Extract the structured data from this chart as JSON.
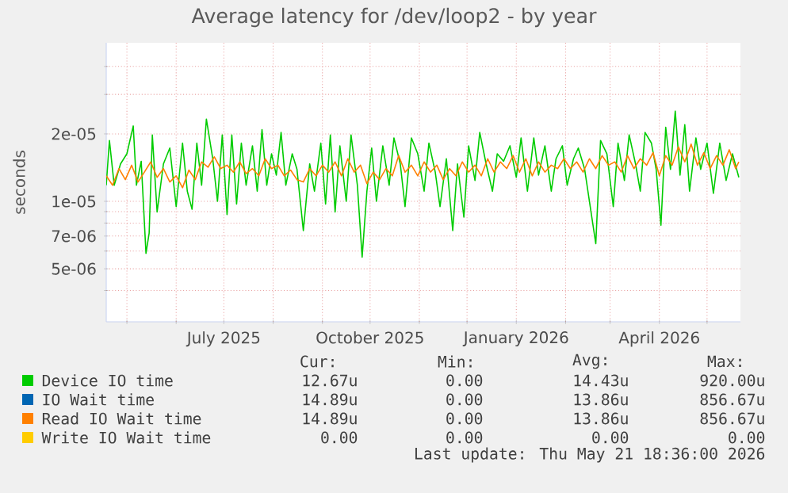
{
  "chart_data": {
    "type": "line",
    "title": "Average latency for /dev/loop2 - by year",
    "ylabel": "seconds",
    "log": "y",
    "grid": true,
    "legend": "bottom",
    "line_style": "solid",
    "xlim": [
      "2025-04-18",
      "2026-05-22"
    ],
    "xticks": [
      {
        "value": "2025-05-01",
        "label": null
      },
      {
        "value": "2025-06-01",
        "label": null
      },
      {
        "value": "2025-07-01",
        "label": "July 2025"
      },
      {
        "value": "2025-08-01",
        "label": null
      },
      {
        "value": "2025-09-01",
        "label": null
      },
      {
        "value": "2025-10-01",
        "label": "October 2025"
      },
      {
        "value": "2025-11-01",
        "label": null
      },
      {
        "value": "2025-12-01",
        "label": null
      },
      {
        "value": "2026-01-01",
        "label": "January 2026"
      },
      {
        "value": "2026-02-01",
        "label": null
      },
      {
        "value": "2026-03-01",
        "label": null
      },
      {
        "value": "2026-04-01",
        "label": "April 2026"
      },
      {
        "value": "2026-05-01",
        "label": null
      }
    ],
    "ylim": [
      2.9e-06,
      5.1e-05
    ],
    "yticks": [
      {
        "value": 5e-06,
        "label": "5e-06"
      },
      {
        "value": 7e-06,
        "label": "7e-06"
      },
      {
        "value": 1e-05,
        "label": "1e-05"
      },
      {
        "value": 2e-05,
        "label": "2e-05"
      },
      {
        "value": 4e-06,
        "label": null
      },
      {
        "value": 6e-06,
        "label": null
      },
      {
        "value": 8e-06,
        "label": null
      },
      {
        "value": 9e-06,
        "label": null
      },
      {
        "value": 3e-05,
        "label": null
      },
      {
        "value": 4e-05,
        "label": null
      }
    ],
    "series": [
      {
        "name": "Device IO time",
        "color": "#00cc00",
        "x": [
          "2025-04-18",
          "2025-04-20",
          "2025-04-23",
          "2025-04-27",
          "2025-05-01",
          "2025-05-05",
          "2025-05-07",
          "2025-05-10",
          "2025-05-13",
          "2025-05-15",
          "2025-05-17",
          "2025-05-20",
          "2025-05-24",
          "2025-05-28",
          "2025-06-01",
          "2025-06-05",
          "2025-06-08",
          "2025-06-11",
          "2025-06-14",
          "2025-06-17",
          "2025-06-20",
          "2025-06-24",
          "2025-06-27",
          "2025-06-30",
          "2025-07-03",
          "2025-07-06",
          "2025-07-09",
          "2025-07-12",
          "2025-07-15",
          "2025-07-19",
          "2025-07-22",
          "2025-07-25",
          "2025-07-28",
          "2025-07-31",
          "2025-08-03",
          "2025-08-06",
          "2025-08-09",
          "2025-08-13",
          "2025-08-16",
          "2025-08-20",
          "2025-08-24",
          "2025-08-27",
          "2025-08-31",
          "2025-09-03",
          "2025-09-06",
          "2025-09-09",
          "2025-09-12",
          "2025-09-16",
          "2025-09-19",
          "2025-09-23",
          "2025-09-26",
          "2025-09-29",
          "2025-10-02",
          "2025-10-05",
          "2025-10-09",
          "2025-10-13",
          "2025-10-16",
          "2025-10-20",
          "2025-10-23",
          "2025-10-27",
          "2025-10-31",
          "2025-11-04",
          "2025-11-07",
          "2025-11-11",
          "2025-11-14",
          "2025-11-18",
          "2025-11-22",
          "2025-11-25",
          "2025-11-29",
          "2025-12-02",
          "2025-12-06",
          "2025-12-09",
          "2025-12-13",
          "2025-12-17",
          "2025-12-20",
          "2025-12-24",
          "2025-12-28",
          "2026-01-01",
          "2026-01-04",
          "2026-01-08",
          "2026-01-12",
          "2026-01-15",
          "2026-01-19",
          "2026-01-23",
          "2026-01-26",
          "2026-01-30",
          "2026-02-02",
          "2026-02-06",
          "2026-02-09",
          "2026-02-13",
          "2026-02-17",
          "2026-02-20",
          "2026-02-23",
          "2026-02-27",
          "2026-03-03",
          "2026-03-06",
          "2026-03-10",
          "2026-03-13",
          "2026-03-17",
          "2026-03-20",
          "2026-03-23",
          "2026-03-27",
          "2026-03-30",
          "2026-04-02",
          "2026-04-05",
          "2026-04-08",
          "2026-04-11",
          "2026-04-14",
          "2026-04-17",
          "2026-04-20",
          "2026-04-24",
          "2026-04-27",
          "2026-05-01",
          "2026-05-05",
          "2026-05-09",
          "2026-05-13",
          "2026-05-17",
          "2026-05-21"
        ],
        "values": [
          1.18e-05,
          1.87e-05,
          1.18e-05,
          1.47e-05,
          1.63e-05,
          2.17e-05,
          1.18e-05,
          1.51e-05,
          5.86e-06,
          7.21e-06,
          1.98e-05,
          8.97e-06,
          1.47e-05,
          1.73e-05,
          9.47e-06,
          1.82e-05,
          1.11e-05,
          9.22e-06,
          1.82e-05,
          1.18e-05,
          2.33e-05,
          1.55e-05,
          1e-05,
          1.98e-05,
          8.73e-06,
          1.98e-05,
          9.73e-06,
          1.82e-05,
          1.18e-05,
          1.77e-05,
          1.11e-05,
          2.09e-05,
          1.18e-05,
          1.63e-05,
          1.31e-05,
          2.03e-05,
          1.18e-05,
          1.63e-05,
          1.39e-05,
          7.41e-06,
          1.47e-05,
          1.11e-05,
          1.82e-05,
          9.73e-06,
          1.98e-05,
          8.97e-06,
          1.77e-05,
          1e-05,
          1.98e-05,
          1.18e-05,
          5.64e-06,
          1.11e-05,
          1.73e-05,
          1e-05,
          1.77e-05,
          1.18e-05,
          1.92e-05,
          1.47e-05,
          9.47e-06,
          1.92e-05,
          1.63e-05,
          1.11e-05,
          1.82e-05,
          1.35e-05,
          9.47e-06,
          1.55e-05,
          7.41e-06,
          1.47e-05,
          8.5e-06,
          1.77e-05,
          1.24e-05,
          2.03e-05,
          1.47e-05,
          1.11e-05,
          1.63e-05,
          1.51e-05,
          1.77e-05,
          1.28e-05,
          1.92e-05,
          1.11e-05,
          1.92e-05,
          1.31e-05,
          1.77e-05,
          1.11e-05,
          1.55e-05,
          1.77e-05,
          1.18e-05,
          1.55e-05,
          1.73e-05,
          1.39e-05,
          8.97e-06,
          6.47e-06,
          1.87e-05,
          1.63e-05,
          9.47e-06,
          1.82e-05,
          1.24e-05,
          1.98e-05,
          1.47e-05,
          1.11e-05,
          2.03e-05,
          1.82e-05,
          1.39e-05,
          7.82e-06,
          2.14e-05,
          1.39e-05,
          2.53e-05,
          1.31e-05,
          2.2e-05,
          1.11e-05,
          1.92e-05,
          1.39e-05,
          1.82e-05,
          1.085e-05,
          1.82e-05,
          1.24e-05,
          1.63e-05,
          1.28e-05
        ]
      },
      {
        "name": "IO Wait time",
        "color": "#0066b3"
      },
      {
        "name": "Read IO Wait time",
        "color": "#ff8000",
        "x": [
          "2025-04-18",
          "2025-04-22",
          "2025-04-26",
          "2025-04-30",
          "2025-05-04",
          "2025-05-08",
          "2025-05-12",
          "2025-05-16",
          "2025-05-20",
          "2025-05-24",
          "2025-05-28",
          "2025-06-01",
          "2025-06-05",
          "2025-06-09",
          "2025-06-13",
          "2025-06-17",
          "2025-06-21",
          "2025-06-25",
          "2025-06-29",
          "2025-07-03",
          "2025-07-07",
          "2025-07-11",
          "2025-07-15",
          "2025-07-19",
          "2025-07-23",
          "2025-07-27",
          "2025-07-31",
          "2025-08-04",
          "2025-08-08",
          "2025-08-12",
          "2025-08-16",
          "2025-08-20",
          "2025-08-24",
          "2025-08-28",
          "2025-09-01",
          "2025-09-05",
          "2025-09-09",
          "2025-09-13",
          "2025-09-17",
          "2025-09-21",
          "2025-09-25",
          "2025-09-29",
          "2025-10-03",
          "2025-10-07",
          "2025-10-11",
          "2025-10-15",
          "2025-10-19",
          "2025-10-23",
          "2025-10-27",
          "2025-10-31",
          "2025-11-04",
          "2025-11-08",
          "2025-11-12",
          "2025-11-16",
          "2025-11-20",
          "2025-11-24",
          "2025-11-28",
          "2025-12-02",
          "2025-12-06",
          "2025-12-10",
          "2025-12-14",
          "2025-12-18",
          "2025-12-22",
          "2025-12-26",
          "2025-12-30",
          "2026-01-03",
          "2026-01-07",
          "2026-01-11",
          "2026-01-15",
          "2026-01-19",
          "2026-01-23",
          "2026-01-27",
          "2026-01-31",
          "2026-02-04",
          "2026-02-08",
          "2026-02-12",
          "2026-02-16",
          "2026-02-20",
          "2026-02-24",
          "2026-02-28",
          "2026-03-04",
          "2026-03-08",
          "2026-03-12",
          "2026-03-16",
          "2026-03-20",
          "2026-03-24",
          "2026-03-28",
          "2026-04-01",
          "2026-04-05",
          "2026-04-09",
          "2026-04-13",
          "2026-04-17",
          "2026-04-21",
          "2026-04-25",
          "2026-04-29",
          "2026-05-03",
          "2026-05-07",
          "2026-05-11",
          "2026-05-15",
          "2026-05-19",
          "2026-05-21"
        ],
        "values": [
          1.3e-05,
          1.18e-05,
          1.4e-05,
          1.25e-05,
          1.45e-05,
          1.22e-05,
          1.35e-05,
          1.5e-05,
          1.28e-05,
          1.4e-05,
          1.22e-05,
          1.3e-05,
          1.15e-05,
          1.38e-05,
          1.25e-05,
          1.5e-05,
          1.42e-05,
          1.58e-05,
          1.4e-05,
          1.45e-05,
          1.35e-05,
          1.5e-05,
          1.33e-05,
          1.4e-05,
          1.3e-05,
          1.55e-05,
          1.4e-05,
          1.45e-05,
          1.3e-05,
          1.38e-05,
          1.25e-05,
          1.22e-05,
          1.4e-05,
          1.3e-05,
          1.45e-05,
          1.35e-05,
          1.5e-05,
          1.3e-05,
          1.55e-05,
          1.35e-05,
          1.45e-05,
          1.2e-05,
          1.35e-05,
          1.25e-05,
          1.4e-05,
          1.3e-05,
          1.6e-05,
          1.35e-05,
          1.45e-05,
          1.3e-05,
          1.5e-05,
          1.35e-05,
          1.45e-05,
          1.25e-05,
          1.4e-05,
          1.3e-05,
          1.5e-05,
          1.35e-05,
          1.45e-05,
          1.3e-05,
          1.55e-05,
          1.35e-05,
          1.5e-05,
          1.4e-05,
          1.6e-05,
          1.35e-05,
          1.55e-05,
          1.3e-05,
          1.5e-05,
          1.35e-05,
          1.45e-05,
          1.4e-05,
          1.55e-05,
          1.4e-05,
          1.5e-05,
          1.35e-05,
          1.55e-05,
          1.4e-05,
          1.6e-05,
          1.45e-05,
          1.5e-05,
          1.35e-05,
          1.6e-05,
          1.4e-05,
          1.55e-05,
          1.45e-05,
          1.65e-05,
          1.3e-05,
          1.6e-05,
          1.45e-05,
          1.75e-05,
          1.5e-05,
          1.8e-05,
          1.45e-05,
          1.65e-05,
          1.4e-05,
          1.6e-05,
          1.45e-05,
          1.7e-05,
          1.4e-05,
          1.5e-05
        ]
      },
      {
        "name": "Write IO Wait time",
        "color": "#ffcc00"
      }
    ],
    "annotations": [
      "Cur:",
      "Min:",
      "Avg:",
      "Max:",
      "12.67u",
      "0.00",
      "14.43u",
      "920.00u",
      "14.89u",
      "0.00",
      "13.86u",
      "856.67u",
      "14.89u",
      "0.00",
      "13.86u",
      "856.67u",
      "0.00",
      "0.00",
      "0.00",
      "0.00",
      "Last update: Thu May 21 18:36:00 2026"
    ]
  }
}
